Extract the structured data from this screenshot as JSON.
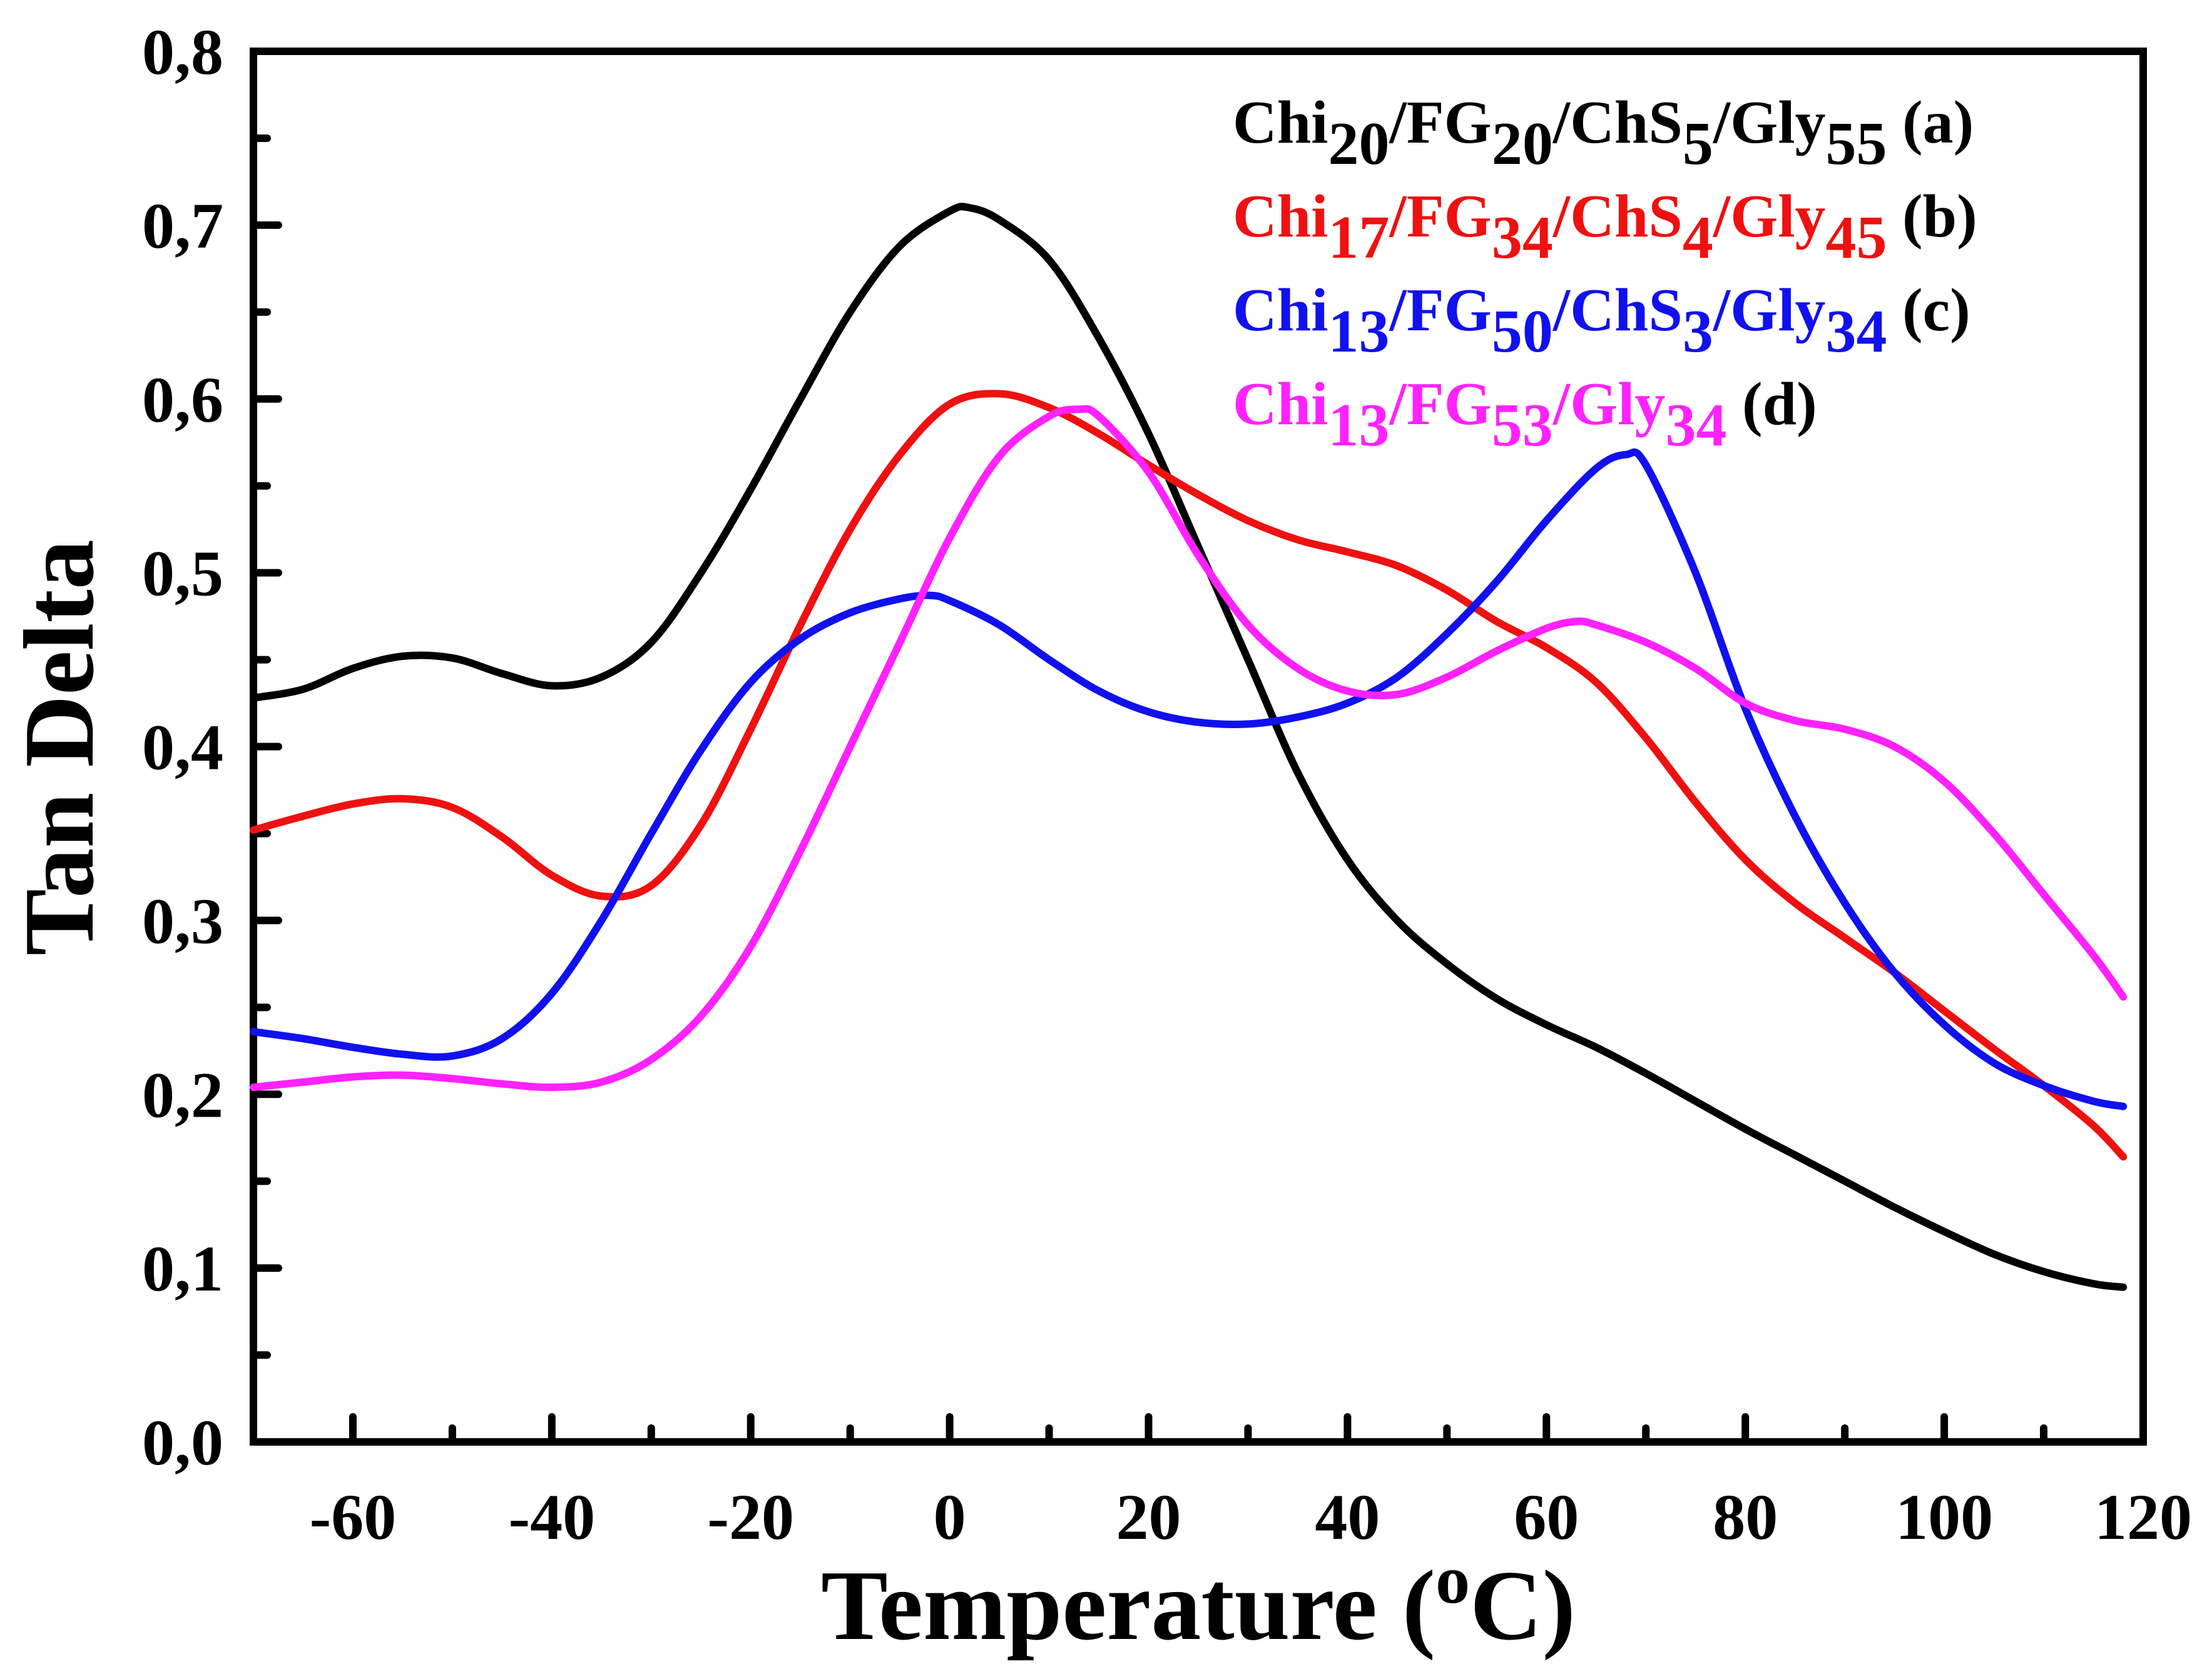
{
  "chart_data": {
    "type": "line",
    "title": "",
    "xlabel": {
      "main": "Temperature (",
      "sup": "o",
      "tail": "C)"
    },
    "ylabel": "Tan Delta",
    "xlim": [
      -70,
      120
    ],
    "ylim": [
      0.0,
      0.8
    ],
    "x_ticks": [
      -60,
      -40,
      -20,
      0,
      20,
      40,
      60,
      80,
      100,
      120
    ],
    "x_tick_labels": [
      "-60",
      "-40",
      "-20",
      "0",
      "20",
      "40",
      "60",
      "80",
      "100",
      "120"
    ],
    "y_ticks": [
      0.0,
      0.1,
      0.2,
      0.3,
      0.4,
      0.5,
      0.6,
      0.7,
      0.8
    ],
    "y_tick_labels": [
      "0,0",
      "0,1",
      "0,2",
      "0,3",
      "0,4",
      "0,5",
      "0,6",
      "0,7",
      "0,8"
    ],
    "grid": false,
    "legend_position": "top-right",
    "series": [
      {
        "color": "#000000",
        "legend": [
          [
            "Chi",
            ""
          ],
          [
            "20",
            "sub"
          ],
          [
            "/FG",
            ""
          ],
          [
            "20",
            "sub"
          ],
          [
            "/ChS",
            ""
          ],
          [
            "5",
            "sub"
          ],
          [
            "/Gly",
            ""
          ],
          [
            "55",
            "sub"
          ],
          [
            " (a)",
            "tag"
          ]
        ],
        "points": [
          [
            -70,
            0.428
          ],
          [
            -65,
            0.433
          ],
          [
            -60,
            0.445
          ],
          [
            -55,
            0.452
          ],
          [
            -50,
            0.451
          ],
          [
            -45,
            0.442
          ],
          [
            -40,
            0.435
          ],
          [
            -35,
            0.44
          ],
          [
            -30,
            0.46
          ],
          [
            -25,
            0.5
          ],
          [
            -20,
            0.548
          ],
          [
            -15,
            0.6
          ],
          [
            -10,
            0.65
          ],
          [
            -5,
            0.688
          ],
          [
            0,
            0.708
          ],
          [
            2,
            0.71
          ],
          [
            5,
            0.703
          ],
          [
            10,
            0.68
          ],
          [
            15,
            0.635
          ],
          [
            20,
            0.58
          ],
          [
            25,
            0.515
          ],
          [
            30,
            0.45
          ],
          [
            35,
            0.385
          ],
          [
            40,
            0.335
          ],
          [
            45,
            0.3
          ],
          [
            50,
            0.275
          ],
          [
            55,
            0.255
          ],
          [
            60,
            0.24
          ],
          [
            65,
            0.227
          ],
          [
            70,
            0.212
          ],
          [
            75,
            0.196
          ],
          [
            80,
            0.18
          ],
          [
            85,
            0.165
          ],
          [
            90,
            0.15
          ],
          [
            95,
            0.135
          ],
          [
            100,
            0.121
          ],
          [
            105,
            0.108
          ],
          [
            110,
            0.098
          ],
          [
            115,
            0.091
          ],
          [
            118,
            0.089
          ]
        ]
      },
      {
        "color": "#ee1111",
        "legend": [
          [
            "Chi",
            ""
          ],
          [
            "17",
            "sub"
          ],
          [
            "/FG",
            ""
          ],
          [
            "34",
            "sub"
          ],
          [
            "/ChS",
            ""
          ],
          [
            "4",
            "sub"
          ],
          [
            "/Gly",
            ""
          ],
          [
            "45",
            "sub"
          ],
          [
            " (b)",
            "tag"
          ]
        ],
        "points": [
          [
            -70,
            0.352
          ],
          [
            -65,
            0.36
          ],
          [
            -60,
            0.367
          ],
          [
            -55,
            0.37
          ],
          [
            -50,
            0.365
          ],
          [
            -45,
            0.348
          ],
          [
            -40,
            0.326
          ],
          [
            -35,
            0.314
          ],
          [
            -30,
            0.32
          ],
          [
            -25,
            0.355
          ],
          [
            -20,
            0.41
          ],
          [
            -15,
            0.47
          ],
          [
            -10,
            0.525
          ],
          [
            -5,
            0.568
          ],
          [
            0,
            0.597
          ],
          [
            5,
            0.603
          ],
          [
            10,
            0.595
          ],
          [
            15,
            0.58
          ],
          [
            20,
            0.562
          ],
          [
            25,
            0.545
          ],
          [
            30,
            0.53
          ],
          [
            35,
            0.519
          ],
          [
            40,
            0.512
          ],
          [
            45,
            0.504
          ],
          [
            50,
            0.49
          ],
          [
            55,
            0.472
          ],
          [
            60,
            0.457
          ],
          [
            65,
            0.437
          ],
          [
            70,
            0.405
          ],
          [
            75,
            0.368
          ],
          [
            80,
            0.335
          ],
          [
            85,
            0.31
          ],
          [
            90,
            0.29
          ],
          [
            95,
            0.27
          ],
          [
            100,
            0.248
          ],
          [
            105,
            0.226
          ],
          [
            110,
            0.205
          ],
          [
            115,
            0.182
          ],
          [
            118,
            0.164
          ]
        ]
      },
      {
        "color": "#1111ee",
        "legend": [
          [
            "Chi",
            ""
          ],
          [
            "13",
            "sub"
          ],
          [
            "/FG",
            ""
          ],
          [
            "50",
            "sub"
          ],
          [
            "/ChS",
            ""
          ],
          [
            "3",
            "sub"
          ],
          [
            "/Gly",
            ""
          ],
          [
            "34",
            "sub"
          ],
          [
            " (c)",
            "tag"
          ]
        ],
        "points": [
          [
            -70,
            0.236
          ],
          [
            -65,
            0.232
          ],
          [
            -60,
            0.227
          ],
          [
            -55,
            0.223
          ],
          [
            -50,
            0.222
          ],
          [
            -45,
            0.232
          ],
          [
            -40,
            0.258
          ],
          [
            -35,
            0.3
          ],
          [
            -30,
            0.35
          ],
          [
            -25,
            0.398
          ],
          [
            -20,
            0.437
          ],
          [
            -15,
            0.462
          ],
          [
            -10,
            0.477
          ],
          [
            -5,
            0.485
          ],
          [
            -2,
            0.487
          ],
          [
            0,
            0.484
          ],
          [
            5,
            0.47
          ],
          [
            10,
            0.45
          ],
          [
            15,
            0.432
          ],
          [
            20,
            0.42
          ],
          [
            25,
            0.414
          ],
          [
            30,
            0.413
          ],
          [
            35,
            0.417
          ],
          [
            40,
            0.425
          ],
          [
            45,
            0.44
          ],
          [
            50,
            0.465
          ],
          [
            55,
            0.495
          ],
          [
            60,
            0.53
          ],
          [
            65,
            0.56
          ],
          [
            68,
            0.568
          ],
          [
            70,
            0.562
          ],
          [
            75,
            0.5
          ],
          [
            80,
            0.422
          ],
          [
            85,
            0.36
          ],
          [
            90,
            0.31
          ],
          [
            95,
            0.27
          ],
          [
            100,
            0.24
          ],
          [
            105,
            0.218
          ],
          [
            110,
            0.205
          ],
          [
            115,
            0.196
          ],
          [
            118,
            0.193
          ]
        ]
      },
      {
        "color": "#ff22ff",
        "legend": [
          [
            "Chi",
            ""
          ],
          [
            "13",
            "sub"
          ],
          [
            "/FG",
            ""
          ],
          [
            "53",
            "sub"
          ],
          [
            "/Gly",
            ""
          ],
          [
            "34",
            "sub"
          ],
          [
            " (d)",
            "tag"
          ]
        ],
        "points": [
          [
            -70,
            0.204
          ],
          [
            -65,
            0.207
          ],
          [
            -60,
            0.21
          ],
          [
            -55,
            0.211
          ],
          [
            -50,
            0.209
          ],
          [
            -45,
            0.206
          ],
          [
            -40,
            0.204
          ],
          [
            -35,
            0.207
          ],
          [
            -30,
            0.22
          ],
          [
            -25,
            0.245
          ],
          [
            -20,
            0.285
          ],
          [
            -15,
            0.34
          ],
          [
            -10,
            0.4
          ],
          [
            -5,
            0.46
          ],
          [
            0,
            0.52
          ],
          [
            5,
            0.567
          ],
          [
            10,
            0.59
          ],
          [
            13,
            0.594
          ],
          [
            15,
            0.59
          ],
          [
            20,
            0.558
          ],
          [
            25,
            0.51
          ],
          [
            30,
            0.47
          ],
          [
            35,
            0.445
          ],
          [
            40,
            0.432
          ],
          [
            45,
            0.43
          ],
          [
            50,
            0.44
          ],
          [
            55,
            0.455
          ],
          [
            60,
            0.468
          ],
          [
            63,
            0.472
          ],
          [
            65,
            0.47
          ],
          [
            70,
            0.46
          ],
          [
            75,
            0.445
          ],
          [
            80,
            0.425
          ],
          [
            85,
            0.415
          ],
          [
            90,
            0.41
          ],
          [
            95,
            0.4
          ],
          [
            100,
            0.38
          ],
          [
            105,
            0.35
          ],
          [
            110,
            0.315
          ],
          [
            115,
            0.28
          ],
          [
            118,
            0.256
          ]
        ]
      }
    ]
  }
}
